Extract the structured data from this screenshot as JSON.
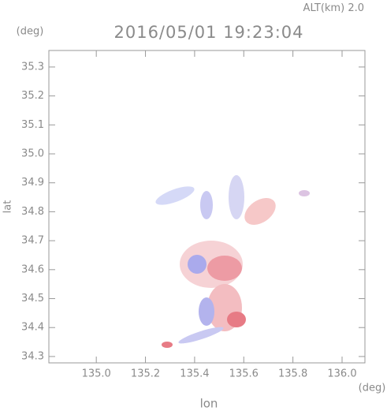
{
  "chart_data": {
    "type": "map",
    "title": "2016/05/01 19:23:04",
    "altitude_label": "ALT(km)",
    "altitude_value": "2.0",
    "x_label": "lon",
    "y_label": "lat",
    "x_unit": "(deg)",
    "y_unit": "(deg)",
    "xlim": [
      134.807,
      136.093
    ],
    "ylim": [
      34.278,
      35.357
    ],
    "xticks": [
      {
        "value": 135.0,
        "label": "135.0"
      },
      135.2,
      135.4,
      135.6,
      135.8,
      {
        "value": 136.0,
        "label": "136.0"
      }
    ],
    "yticks": [
      34.3,
      34.4,
      34.5,
      34.6,
      34.7,
      34.8,
      34.9,
      {
        "value": 35.0,
        "label": "35.0"
      },
      35.1,
      35.2,
      35.3
    ]
  }
}
